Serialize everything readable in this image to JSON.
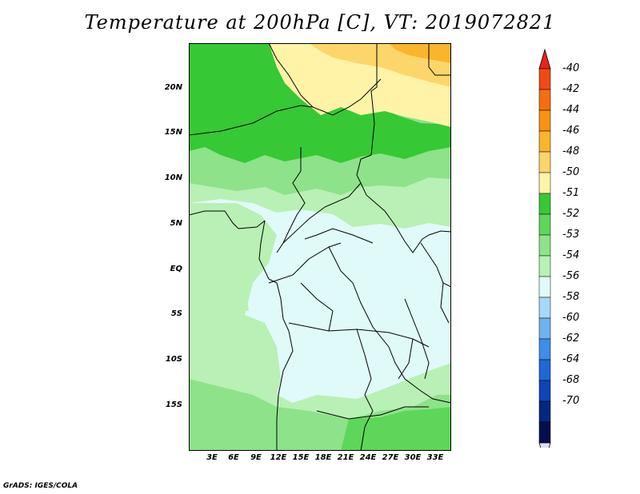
{
  "title": "Temperature at 200hPa [C], VT: 2019072821",
  "credit": "GrADS: IGES/COLA",
  "map": {
    "lat_labels": [
      "20N",
      "15N",
      "10N",
      "5N",
      "EQ",
      "5S",
      "10S",
      "15S"
    ],
    "lon_labels": [
      "3E",
      "6E",
      "9E",
      "12E",
      "15E",
      "18E",
      "21E",
      "24E",
      "27E",
      "30E",
      "33E"
    ]
  },
  "colorbar": {
    "labels": [
      "-40",
      "-42",
      "-44",
      "-46",
      "-48",
      "-50",
      "-51",
      "-52",
      "-53",
      "-54",
      "-56",
      "-58",
      "-60",
      "-62",
      "-64",
      "-68",
      "-70"
    ],
    "colors": [
      "#e8231a",
      "#f04a14",
      "#f46e0f",
      "#f8920f",
      "#fbb52d",
      "#fdd66b",
      "#fff3a8",
      "#37c835",
      "#5ed659",
      "#8ee28a",
      "#b9f0b5",
      "#e0fafa",
      "#a9d7f7",
      "#6eb3f0",
      "#3d8ee6",
      "#1f68d6",
      "#0f45b9",
      "#06277f",
      "#030f4d",
      "#ddddf5"
    ]
  }
}
